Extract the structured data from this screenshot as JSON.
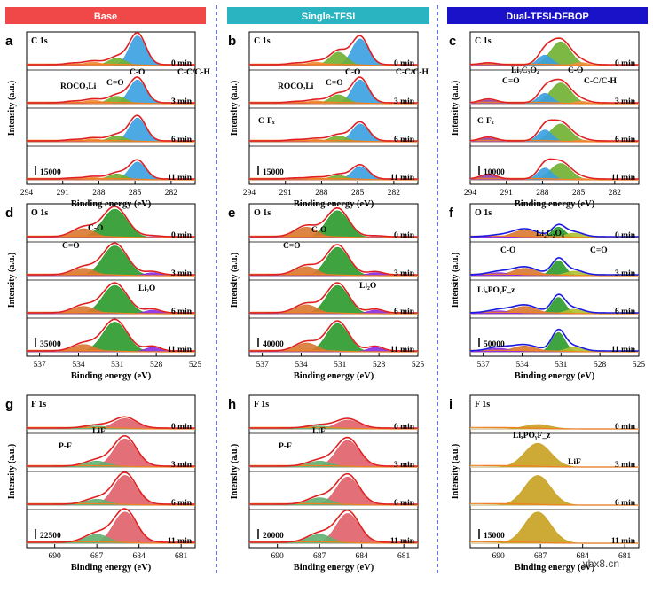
{
  "columns": [
    {
      "banner": "Base",
      "color": "#f04848"
    },
    {
      "banner": "Single-TFSI",
      "color": "#2ab3c0"
    },
    {
      "banner": "Dual-TFSI-DFBOP",
      "color": "#1a12c8"
    }
  ],
  "xlabel": "Binding energy (eV)",
  "ylabel": "Intensity (a.u.)",
  "watermark": "ybx8.cn",
  "times": [
    "0 min",
    "3 min",
    "6 min",
    "11 min"
  ],
  "colors": {
    "envelope_red": "#e02020",
    "envelope_blue": "#1a1ae0",
    "raw_red": "#e04848",
    "baseline": "#f08020",
    "c_main": "#3aa0e0",
    "c_green": "#70b030",
    "c_orange": "#f09040",
    "c_red": "#e06050",
    "c_purple": "#9040b0",
    "o_green": "#2a9a2a",
    "o_orange": "#d87830",
    "o_purple": "#8a2ae0",
    "o_yellowgreen": "#b0c030",
    "f_lif": "#e0606a",
    "f_pf": "#60b070",
    "f_gold": "#c8a020",
    "hist": "#d8d8d8"
  },
  "chart_data": [
    {
      "letter": "a",
      "type": "area",
      "core": "C 1s",
      "scale": "15000",
      "xlim": [
        294,
        280
      ],
      "ticks": [
        294,
        291,
        288,
        285,
        282
      ],
      "annotations": [
        "ROCO₂Li",
        "C=O",
        "C-O",
        "C-C/C-H"
      ],
      "envelope": "red",
      "peaks": [
        {
          "name": "C-C/C-H",
          "center": 284.8,
          "fwhm": 1.6,
          "color": "c_main",
          "heights": [
            1.0,
            0.8,
            0.8,
            0.6
          ]
        },
        {
          "name": "C-O",
          "center": 286.5,
          "fwhm": 1.7,
          "color": "c_green",
          "heights": [
            0.25,
            0.25,
            0.2,
            0.2
          ]
        },
        {
          "name": "C=O",
          "center": 288.5,
          "fwhm": 1.7,
          "color": "c_orange",
          "heights": [
            0.12,
            0.12,
            0.1,
            0.08
          ]
        },
        {
          "name": "ROCO2Li",
          "center": 290.2,
          "fwhm": 1.5,
          "color": "c_red",
          "heights": [
            0.05,
            0.05,
            0.04,
            0.03
          ]
        }
      ]
    },
    {
      "letter": "b",
      "type": "area",
      "core": "C 1s",
      "scale": "15000",
      "xlim": [
        294,
        280
      ],
      "ticks": [
        294,
        291,
        288,
        285,
        282
      ],
      "annotations": [
        "ROCO₂Li",
        "C=O",
        "C-O",
        "C-C/C-H",
        "C-Fₓ"
      ],
      "envelope": "red",
      "peaks": [
        {
          "name": "C-C/C-H",
          "center": 284.8,
          "fwhm": 1.6,
          "color": "c_main",
          "heights": [
            0.9,
            0.8,
            0.6,
            0.45
          ]
        },
        {
          "name": "C-O",
          "center": 286.6,
          "fwhm": 1.7,
          "color": "c_green",
          "heights": [
            0.45,
            0.3,
            0.2,
            0.15
          ]
        },
        {
          "name": "C=O",
          "center": 288.5,
          "fwhm": 1.7,
          "color": "c_orange",
          "heights": [
            0.12,
            0.1,
            0.08,
            0.06
          ]
        },
        {
          "name": "ROCO2Li",
          "center": 290.2,
          "fwhm": 1.5,
          "color": "c_red",
          "heights": [
            0.05,
            0.04,
            0.04,
            0.03
          ]
        }
      ]
    },
    {
      "letter": "c",
      "type": "area",
      "core": "C 1s",
      "scale": "10000",
      "xlim": [
        294,
        280
      ],
      "ticks": [
        294,
        291,
        288,
        285,
        282
      ],
      "annotations": [
        "Li₂C₂O₄",
        "C=O",
        "C-O",
        "C-C/C-H",
        "C-Fₓ"
      ],
      "envelope": "red",
      "peaks": [
        {
          "name": "C-O",
          "center": 286.5,
          "fwhm": 2.0,
          "color": "c_green",
          "heights": [
            0.8,
            0.7,
            0.6,
            0.55
          ]
        },
        {
          "name": "Li2C2O4",
          "center": 287.8,
          "fwhm": 1.4,
          "color": "c_main",
          "heights": [
            0.35,
            0.35,
            0.4,
            0.4
          ]
        },
        {
          "name": "C-F",
          "center": 292.5,
          "fwhm": 1.6,
          "color": "c_purple",
          "heights": [
            0.06,
            0.12,
            0.12,
            0.15
          ]
        },
        {
          "name": "C-C/C-H",
          "center": 284.8,
          "fwhm": 1.5,
          "color": "c_orange",
          "heights": [
            0.1,
            0.08,
            0.06,
            0.05
          ]
        }
      ]
    },
    {
      "letter": "d",
      "type": "area",
      "core": "O 1s",
      "scale": "35000",
      "xlim": [
        538,
        525
      ],
      "ticks": [
        537,
        534,
        531,
        528,
        525
      ],
      "annotations": [
        "C=O",
        "C-O",
        "Li₂O"
      ],
      "envelope": "red",
      "peaks": [
        {
          "name": "C=O",
          "center": 531.2,
          "fwhm": 2.2,
          "color": "o_green",
          "heights": [
            0.95,
            1.0,
            0.95,
            1.0
          ]
        },
        {
          "name": "C-O",
          "center": 533.6,
          "fwhm": 2.0,
          "color": "o_orange",
          "heights": [
            0.3,
            0.25,
            0.25,
            0.25
          ]
        },
        {
          "name": "Li2O",
          "center": 528.3,
          "fwhm": 1.4,
          "color": "o_purple",
          "heights": [
            0.03,
            0.1,
            0.12,
            0.15
          ]
        }
      ]
    },
    {
      "letter": "e",
      "type": "area",
      "core": "O 1s",
      "scale": "40000",
      "xlim": [
        538,
        525
      ],
      "ticks": [
        537,
        534,
        531,
        528,
        525
      ],
      "annotations": [
        "C=O",
        "C-O",
        "Li₂O"
      ],
      "envelope": "red",
      "peaks": [
        {
          "name": "C=O",
          "center": 531.2,
          "fwhm": 2.0,
          "color": "o_green",
          "heights": [
            0.9,
            0.95,
            0.95,
            0.95
          ]
        },
        {
          "name": "C-O",
          "center": 533.6,
          "fwhm": 2.0,
          "color": "o_orange",
          "heights": [
            0.35,
            0.3,
            0.3,
            0.3
          ]
        },
        {
          "name": "Li2O",
          "center": 528.3,
          "fwhm": 1.4,
          "color": "o_purple",
          "heights": [
            0.03,
            0.1,
            0.12,
            0.15
          ]
        }
      ]
    },
    {
      "letter": "f",
      "type": "area",
      "core": "O 1s",
      "scale": "50000",
      "xlim": [
        538,
        525
      ],
      "ticks": [
        537,
        534,
        531,
        528,
        525
      ],
      "annotations": [
        "Li₂C₂O₄",
        "C-O",
        "C=O",
        "LiₓPOᵧF_z"
      ],
      "envelope": "blue",
      "peaks": [
        {
          "name": "Li2C2O4",
          "center": 531.2,
          "fwhm": 1.2,
          "color": "o_green",
          "heights": [
            0.35,
            0.5,
            0.55,
            0.65
          ]
        },
        {
          "name": "C-O",
          "center": 533.8,
          "fwhm": 2.2,
          "color": "o_orange",
          "heights": [
            0.25,
            0.25,
            0.25,
            0.2
          ]
        },
        {
          "name": "C=O",
          "center": 530.0,
          "fwhm": 1.6,
          "color": "o_yellowgreen",
          "heights": [
            0.15,
            0.15,
            0.15,
            0.15
          ]
        },
        {
          "name": "LixPOyFz",
          "center": 535.8,
          "fwhm": 2.0,
          "color": "o_purple",
          "heights": [
            0.05,
            0.1,
            0.1,
            0.12
          ]
        }
      ]
    },
    {
      "letter": "g",
      "type": "area",
      "core": "F 1s",
      "scale": "22500",
      "xlim": [
        692,
        680
      ],
      "ticks": [
        690,
        687,
        684,
        681
      ],
      "annotations": [
        "P-F",
        "LiF"
      ],
      "envelope": "red",
      "peaks": [
        {
          "name": "LiF",
          "center": 685.0,
          "fwhm": 1.9,
          "color": "f_lif",
          "heights": [
            0.35,
            0.95,
            1.0,
            1.05
          ]
        },
        {
          "name": "P-F",
          "center": 687.0,
          "fwhm": 2.0,
          "color": "f_pf",
          "heights": [
            0.1,
            0.2,
            0.2,
            0.3
          ]
        }
      ]
    },
    {
      "letter": "h",
      "type": "area",
      "core": "F 1s",
      "scale": "20000",
      "xlim": [
        692,
        680
      ],
      "ticks": [
        690,
        687,
        684,
        681
      ],
      "annotations": [
        "P-F",
        "LiF"
      ],
      "envelope": "red",
      "peaks": [
        {
          "name": "LiF",
          "center": 685.0,
          "fwhm": 1.9,
          "color": "f_lif",
          "heights": [
            0.3,
            0.9,
            0.95,
            1.0
          ]
        },
        {
          "name": "P-F",
          "center": 687.0,
          "fwhm": 2.0,
          "color": "f_pf",
          "heights": [
            0.1,
            0.2,
            0.25,
            0.3
          ]
        }
      ]
    },
    {
      "letter": "i",
      "type": "area",
      "core": "F 1s",
      "scale": "15000",
      "xlim": [
        692,
        680
      ],
      "ticks": [
        690,
        687,
        684,
        681
      ],
      "annotations": [
        "LiₓPOᵧF_z",
        "LiF"
      ],
      "envelope": "none",
      "peaks": [
        {
          "name": "LixPOyFz",
          "center": 687.2,
          "fwhm": 2.2,
          "color": "f_gold",
          "heights": [
            0.15,
            0.8,
            1.0,
            1.05
          ]
        }
      ]
    }
  ]
}
